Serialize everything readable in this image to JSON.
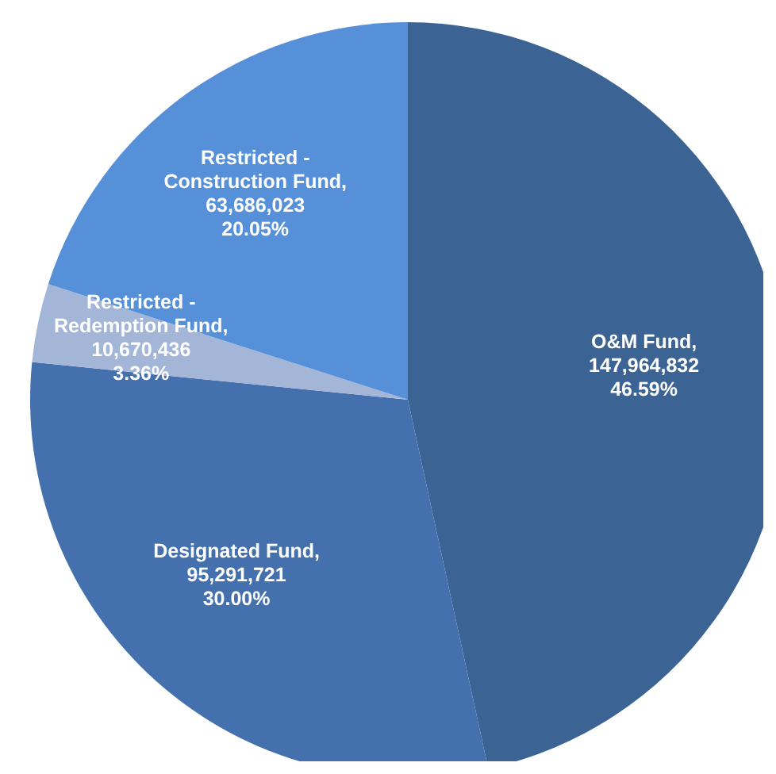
{
  "chart_data": {
    "type": "pie",
    "categories": [
      "O&M Fund",
      "Designated Fund",
      "Restricted - Redemption Fund",
      "Restricted - Construction Fund"
    ],
    "values": [
      147964832,
      95291721,
      10670436,
      63686023
    ],
    "value_labels": [
      ",\n147,964,832\n46.59%",
      ",\n95,291,721\n30.00%",
      ",\n10,670,436\n3.36%",
      ",\n63,686,023\n20.05%"
    ],
    "colors": [
      "#3b6494",
      "#4471ae",
      "#a3b6d8",
      "#5590d8"
    ],
    "legend": false
  }
}
